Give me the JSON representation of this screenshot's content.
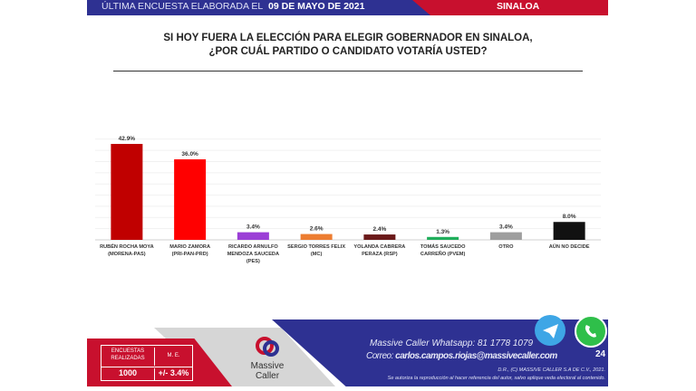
{
  "header": {
    "prefix": "ÚLTIMA ENCUESTA ELABORADA EL",
    "date": "09 DE MAYO DE 2021",
    "state": "SINALOA"
  },
  "title": {
    "line1": "SI HOY FUERA LA ELECCIÓN PARA ELEGIR GOBERNADOR EN SINALOA,",
    "line2": "¿POR CUÁL PARTIDO O CANDIDATO VOTARÍA USTED?"
  },
  "chart_data": {
    "type": "bar",
    "categories": [
      [
        "RUBÉN ROCHA MOYA",
        "(MORENA-PAS)"
      ],
      [
        "MARIO ZAMORA",
        "(PRI-PAN-PRD)"
      ],
      [
        "RICARDO ARNULFO",
        "MENDOZA SAUCEDA",
        "(PES)"
      ],
      [
        "SERGIO TORRES FELIX",
        "(MC)"
      ],
      [
        "YOLANDA CABRERA",
        "PERAZA (RSP)"
      ],
      [
        "TOMÁS SAUCEDO",
        "CARREÑO (PVEM)"
      ],
      [
        "OTRO"
      ],
      [
        "AÚN NO DECIDE"
      ]
    ],
    "values": [
      42.9,
      36.0,
      3.4,
      2.6,
      2.4,
      1.3,
      3.4,
      8.0
    ],
    "labels": [
      "42.9%",
      "36.0%",
      "3.4%",
      "2.6%",
      "2.4%",
      "1.3%",
      "3.4%",
      "8.0%"
    ],
    "colors": [
      "#c00000",
      "#ff0000",
      "#9b3fd6",
      "#ed7d31",
      "#6b1a1a",
      "#1fae5b",
      "#9e9e9e",
      "#111111"
    ],
    "ylim": [
      0,
      45
    ],
    "xlabel": "",
    "ylabel": "",
    "grid": true
  },
  "footer": {
    "table": {
      "h1a": "ENCUESTAS",
      "h1b": "REALIZADAS",
      "h2": "M. E.",
      "v1": "1000",
      "v2": "+/- 3.4%"
    },
    "logo": {
      "line1": "Massive",
      "line2": "Caller"
    },
    "whatsapp": "Massive Caller Whatsapp: 81 1778 1079",
    "email_label": "Correo:",
    "email": "carlos.campos.riojas@massivecaller.com",
    "page": "24",
    "copyright": "D.R., (C) MASSIVE CALLER S.A DE C.V., 2021.",
    "notice": "Se autoriza la reproducción al hacer referencia del autor, salvo aplique veda electoral al contenido."
  }
}
